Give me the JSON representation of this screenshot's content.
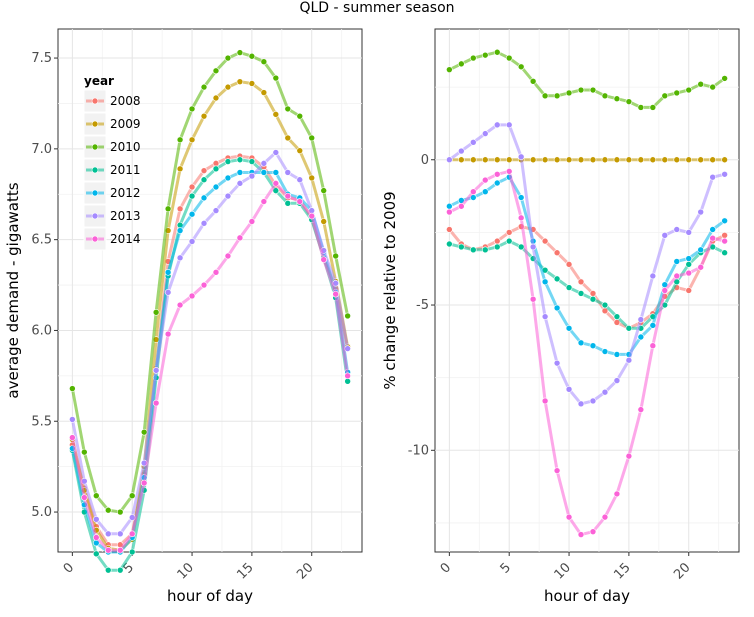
{
  "title": "QLD - summer season",
  "chart_data": [
    {
      "type": "line",
      "xlabel": "hour of day",
      "ylabel": "average demand - gigawatts",
      "xlim": [
        -1.2,
        24.2
      ],
      "ylim": [
        4.78,
        7.66
      ],
      "x_ticks": [
        0,
        5,
        10,
        15,
        20
      ],
      "y_ticks": [
        5.0,
        5.5,
        6.0,
        6.5,
        7.0,
        7.5
      ],
      "y_tick_labels": [
        "5.0",
        "5.5",
        "6.0",
        "6.5",
        "7.0",
        "7.5"
      ],
      "grid": true,
      "legend": {
        "title": "year",
        "position": "top-left"
      },
      "x": [
        0,
        1,
        2,
        3,
        4,
        5,
        6,
        7,
        8,
        9,
        10,
        11,
        12,
        13,
        14,
        15,
        16,
        17,
        18,
        19,
        20,
        21,
        22,
        23
      ],
      "series": [
        {
          "name": "2008",
          "color": "#F8766D",
          "values": [
            5.37,
            5.13,
            4.92,
            4.82,
            4.82,
            4.88,
            5.21,
            5.79,
            6.38,
            6.67,
            6.79,
            6.88,
            6.92,
            6.95,
            6.96,
            6.95,
            6.9,
            6.8,
            6.73,
            6.72,
            6.62,
            6.4,
            6.23,
            5.9
          ]
        },
        {
          "name": "2009",
          "color": "#C49A00",
          "values": [
            5.4,
            5.12,
            4.9,
            4.8,
            4.79,
            4.85,
            5.25,
            5.95,
            6.55,
            6.89,
            7.05,
            7.18,
            7.28,
            7.34,
            7.37,
            7.36,
            7.31,
            7.19,
            7.06,
            6.99,
            6.84,
            6.6,
            6.27,
            5.91
          ]
        },
        {
          "name": "2010",
          "color": "#53B400",
          "values": [
            5.68,
            5.33,
            5.09,
            5.01,
            5.0,
            5.09,
            5.44,
            6.1,
            6.67,
            7.05,
            7.22,
            7.34,
            7.43,
            7.5,
            7.53,
            7.51,
            7.48,
            7.39,
            7.22,
            7.18,
            7.06,
            6.77,
            6.41,
            6.08
          ]
        },
        {
          "name": "2011",
          "color": "#00C094",
          "values": [
            5.34,
            5.0,
            4.77,
            4.68,
            4.68,
            4.78,
            5.12,
            5.74,
            6.3,
            6.58,
            6.74,
            6.83,
            6.89,
            6.93,
            6.94,
            6.93,
            6.87,
            6.77,
            6.7,
            6.7,
            6.61,
            6.4,
            6.18,
            5.72
          ]
        },
        {
          "name": "2012",
          "color": "#00B6EB",
          "values": [
            5.35,
            5.04,
            4.83,
            4.78,
            4.78,
            4.86,
            5.19,
            5.78,
            6.32,
            6.55,
            6.64,
            6.73,
            6.79,
            6.84,
            6.87,
            6.87,
            6.87,
            6.87,
            6.75,
            6.73,
            6.66,
            6.43,
            6.21,
            5.77
          ]
        },
        {
          "name": "2013",
          "color": "#A58AFF",
          "values": [
            5.51,
            5.17,
            4.96,
            4.88,
            4.88,
            4.97,
            5.27,
            5.78,
            6.21,
            6.4,
            6.49,
            6.59,
            6.66,
            6.74,
            6.81,
            6.85,
            6.92,
            6.98,
            6.87,
            6.83,
            6.66,
            6.44,
            6.26,
            5.9
          ]
        },
        {
          "name": "2014",
          "color": "#FB61D7",
          "values": [
            5.41,
            5.08,
            4.86,
            4.79,
            4.79,
            4.88,
            5.16,
            5.6,
            5.98,
            6.14,
            6.19,
            6.25,
            6.32,
            6.41,
            6.51,
            6.6,
            6.71,
            6.81,
            6.74,
            6.71,
            6.63,
            6.39,
            6.2,
            5.75
          ]
        }
      ]
    },
    {
      "type": "line",
      "xlabel": "hour of day",
      "ylabel": "% change relative to 2009",
      "xlim": [
        -1.2,
        24.2
      ],
      "ylim": [
        -13.5,
        4.5
      ],
      "x_ticks": [
        0,
        5,
        10,
        15,
        20
      ],
      "y_ticks": [
        -10,
        -5,
        0
      ],
      "y_tick_labels": [
        "-10",
        "-5",
        "0"
      ],
      "grid": true,
      "x": [
        0,
        1,
        2,
        3,
        4,
        5,
        6,
        7,
        8,
        9,
        10,
        11,
        12,
        13,
        14,
        15,
        16,
        17,
        18,
        19,
        20,
        21,
        22,
        23
      ],
      "series": [
        {
          "name": "2008",
          "color": "#F8766D",
          "values": [
            -2.4,
            -2.9,
            -3.1,
            -3.0,
            -2.8,
            -2.5,
            -2.3,
            -2.4,
            -2.8,
            -3.2,
            -3.6,
            -4.2,
            -4.6,
            -5.2,
            -5.6,
            -5.8,
            -5.6,
            -5.3,
            -4.7,
            -4.4,
            -4.5,
            -3.7,
            -2.8,
            -2.6
          ]
        },
        {
          "name": "2009",
          "color": "#C49A00",
          "values": [
            0,
            0,
            0,
            0,
            0,
            0,
            0,
            0,
            0,
            0,
            0,
            0,
            0,
            0,
            0,
            0,
            0,
            0,
            0,
            0,
            0,
            0,
            0,
            0
          ]
        },
        {
          "name": "2010",
          "color": "#53B400",
          "values": [
            3.1,
            3.3,
            3.5,
            3.6,
            3.7,
            3.5,
            3.2,
            2.7,
            2.2,
            2.2,
            2.3,
            2.4,
            2.4,
            2.2,
            2.1,
            2.0,
            1.8,
            1.8,
            2.2,
            2.3,
            2.4,
            2.6,
            2.5,
            2.8
          ]
        },
        {
          "name": "2011",
          "color": "#00C094",
          "values": [
            -2.9,
            -3.0,
            -3.1,
            -3.1,
            -3.0,
            -2.8,
            -3.0,
            -3.4,
            -3.8,
            -4.1,
            -4.4,
            -4.6,
            -4.8,
            -5.0,
            -5.4,
            -5.8,
            -5.8,
            -5.4,
            -5.0,
            -4.2,
            -3.6,
            -3.2,
            -3.0,
            -3.2
          ]
        },
        {
          "name": "2012",
          "color": "#00B6EB",
          "values": [
            -1.6,
            -1.4,
            -1.3,
            -1.1,
            -0.8,
            -0.6,
            -1.3,
            -2.8,
            -4.2,
            -5.1,
            -5.8,
            -6.3,
            -6.4,
            -6.6,
            -6.7,
            -6.7,
            -6.1,
            -5.7,
            -4.3,
            -3.5,
            -3.4,
            -3.1,
            -2.4,
            -2.1
          ]
        },
        {
          "name": "2013",
          "color": "#A58AFF",
          "values": [
            0,
            0.3,
            0.6,
            0.9,
            1.2,
            1.2,
            0.1,
            -3.0,
            -5.4,
            -7.0,
            -7.9,
            -8.4,
            -8.3,
            -8.0,
            -7.6,
            -6.9,
            -5.5,
            -4.0,
            -2.6,
            -2.4,
            -2.5,
            -1.8,
            -0.6,
            -0.5
          ]
        },
        {
          "name": "2014",
          "color": "#FB61D7",
          "values": [
            -1.8,
            -1.6,
            -1.1,
            -0.7,
            -0.5,
            -0.4,
            -2.0,
            -4.8,
            -8.3,
            -10.7,
            -12.3,
            -12.9,
            -12.8,
            -12.3,
            -11.5,
            -10.2,
            -8.6,
            -6.4,
            -4.5,
            -4.0,
            -3.9,
            -3.7,
            -2.7,
            -2.8
          ]
        }
      ]
    }
  ]
}
